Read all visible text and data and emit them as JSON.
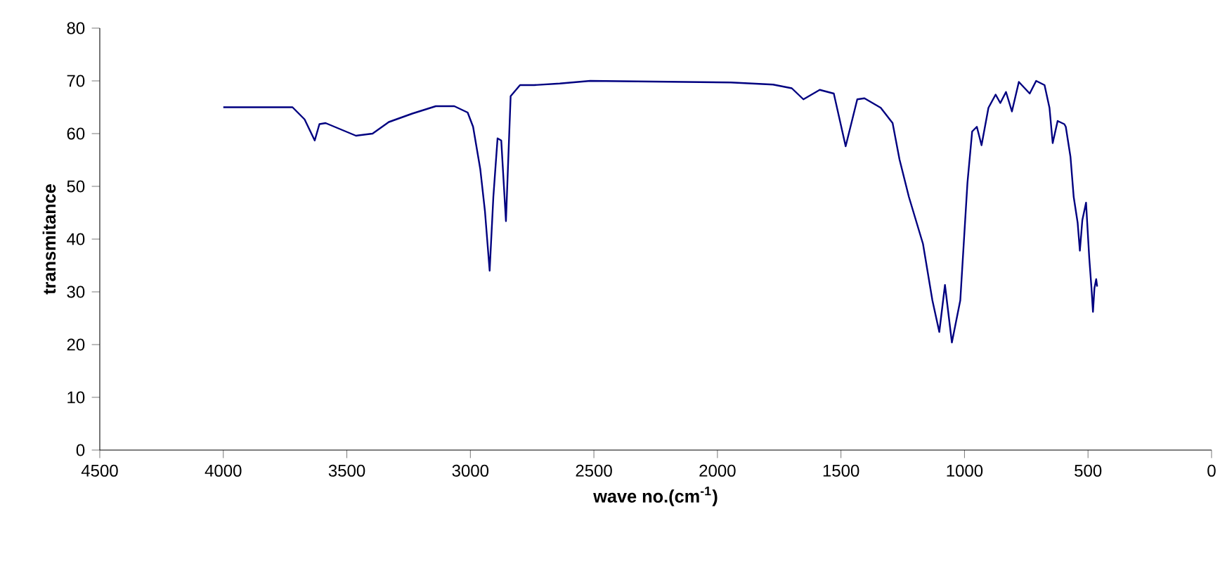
{
  "chart_data": {
    "type": "line",
    "xlabel": "wave no.(cm$^{-1}$)",
    "ylabel": "transmitance",
    "xlim": [
      4500,
      0
    ],
    "ylim": [
      0,
      80
    ],
    "xticks": [
      4500,
      4000,
      3500,
      3000,
      2500,
      2000,
      1500,
      1000,
      500,
      0
    ],
    "yticks": [
      0,
      10,
      20,
      30,
      40,
      50,
      60,
      70,
      80
    ],
    "marker": "none",
    "line_style": "solid",
    "series": [
      {
        "color": "#000080",
        "x": [
          4000,
          3720,
          3671,
          3630,
          3611,
          3586,
          3463,
          3396,
          3330,
          3235,
          3140,
          3065,
          3011,
          2989,
          2960,
          2941,
          2922,
          2907,
          2890,
          2875,
          2856,
          2837,
          2799,
          2742,
          2638,
          2515,
          1946,
          1775,
          1699,
          1652,
          1586,
          1529,
          1481,
          1434,
          1405,
          1339,
          1291,
          1263,
          1225,
          1168,
          1130,
          1102,
          1079,
          1051,
          1017,
          988,
          969,
          950,
          931,
          903,
          874,
          855,
          832,
          808,
          780,
          736,
          710,
          676,
          656,
          643,
          623,
          596,
          590,
          571,
          558,
          542,
          533,
          523,
          508,
          495,
          486,
          480,
          474,
          467,
          463
        ],
        "values": [
          65,
          65,
          62.7,
          58.7,
          61.8,
          62,
          59.6,
          60,
          62.2,
          63.8,
          65.2,
          65.2,
          64,
          61.3,
          53.3,
          45.3,
          34,
          48,
          59.1,
          58.7,
          43.4,
          67.1,
          69.2,
          69.2,
          69.5,
          70,
          69.7,
          69.3,
          68.6,
          66.5,
          68.3,
          67.6,
          57.6,
          66.5,
          66.7,
          64.9,
          62,
          55.1,
          48,
          39.1,
          28.4,
          22.4,
          31.3,
          20.4,
          28.4,
          50.7,
          60.4,
          61.3,
          57.8,
          64.9,
          67.4,
          65.8,
          67.9,
          64.2,
          69.8,
          67.6,
          70,
          69.2,
          64.9,
          58.2,
          62.4,
          61.8,
          61.3,
          55.6,
          48,
          43.1,
          37.8,
          43.6,
          46.9,
          36.4,
          30.7,
          26.2,
          30.7,
          32.4,
          31
        ]
      }
    ]
  }
}
